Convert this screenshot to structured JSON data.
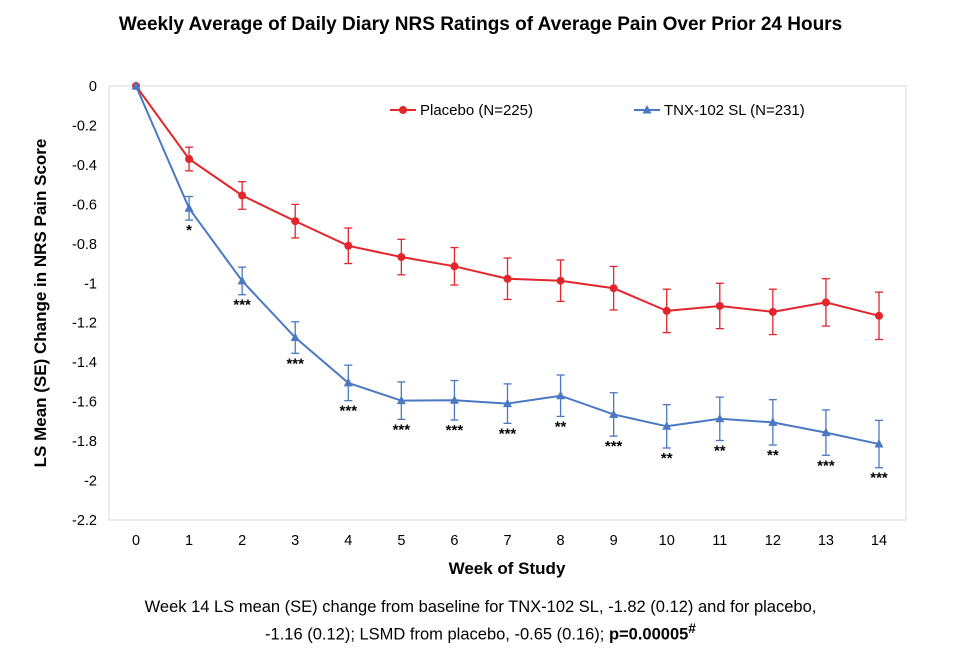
{
  "chart_data": {
    "type": "line",
    "title": "Weekly Average of Daily Diary NRS Ratings of Average Pain Over Prior 24 Hours",
    "xlabel": "Week of Study",
    "ylabel": "LS Mean (SE) Change in NRS Pain Score",
    "x": [
      0,
      1,
      2,
      3,
      4,
      5,
      6,
      7,
      8,
      9,
      10,
      11,
      12,
      13,
      14
    ],
    "ylim": [
      -2.2,
      0
    ],
    "yticks": [
      0,
      -0.2,
      -0.4,
      -0.6,
      -0.8,
      -1,
      -1.2,
      -1.4,
      -1.6,
      -1.8,
      -2,
      -2.2
    ],
    "ytick_labels": [
      "0",
      "-0.2",
      "-0.4",
      "-0.6",
      "-0.8",
      "-1",
      "-1.2",
      "-1.4",
      "-1.6",
      "-1.8",
      "-2",
      "-2.2"
    ],
    "xtick_labels": [
      "0",
      "1",
      "2",
      "3",
      "4",
      "5",
      "6",
      "7",
      "8",
      "9",
      "10",
      "11",
      "12",
      "13",
      "14"
    ],
    "grid": false,
    "legend_position": "top-right",
    "series": [
      {
        "name": "Placebo (N=225)",
        "color": "#e3262b",
        "marker": "circle",
        "values": [
          0,
          -0.37,
          -0.555,
          -0.685,
          -0.81,
          -0.867,
          -0.914,
          -0.977,
          -0.987,
          -1.025,
          -1.14,
          -1.115,
          -1.145,
          -1.097,
          -1.165
        ],
        "se": [
          0,
          0.06,
          0.07,
          0.085,
          0.09,
          0.09,
          0.095,
          0.105,
          0.105,
          0.11,
          0.11,
          0.115,
          0.115,
          0.12,
          0.12
        ]
      },
      {
        "name": "TNX-102 SL (N=231)",
        "color": "#4a78c2",
        "marker": "triangle",
        "values": [
          0,
          -0.62,
          -0.988,
          -1.275,
          -1.505,
          -1.595,
          -1.593,
          -1.61,
          -1.57,
          -1.665,
          -1.725,
          -1.687,
          -1.705,
          -1.757,
          -1.815
        ],
        "se": [
          0,
          0.06,
          0.07,
          0.08,
          0.09,
          0.095,
          0.1,
          0.1,
          0.105,
          0.11,
          0.11,
          0.11,
          0.115,
          0.115,
          0.12
        ]
      }
    ],
    "significance_labels": [
      "",
      "*",
      "***",
      "***",
      "***",
      "***",
      "***",
      "***",
      "**",
      "***",
      "**",
      "**",
      "**",
      "***",
      "***"
    ]
  },
  "caption": {
    "line1": "Week 14 LS mean (SE) change from baseline for TNX-102 SL, -1.82 (0.12) and for placebo,",
    "line2_text": "-1.16 (0.12); LSMD from placebo, -0.65 (0.16); ",
    "line2_bold": "p=0.00005",
    "line2_superscript": "#"
  }
}
